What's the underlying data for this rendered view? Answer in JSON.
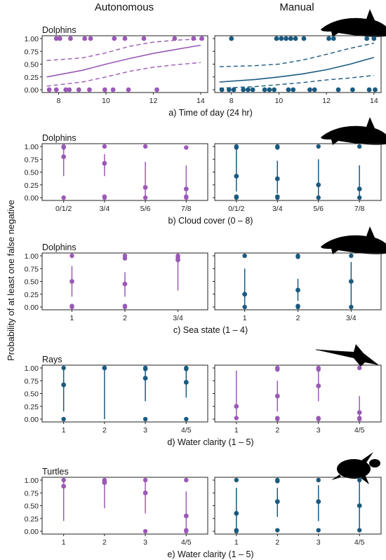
{
  "figure": {
    "col_headers": [
      "Autonomous",
      "Manual"
    ],
    "ylabel": "Probability of at least one false negative",
    "colors": {
      "purple": "#9b59b6",
      "blue": "#1a5a80"
    }
  },
  "chart_data": [
    {
      "id": "a",
      "type": "line",
      "title": "Dolphins",
      "icon": "dolphin-icon",
      "xlabel": "a) Time of day (24 hr)",
      "ylim": [
        0,
        1
      ],
      "yticks": [
        "0.00",
        "0.25",
        "0.50",
        "0.75",
        "1.00"
      ],
      "xlim": [
        7.3,
        14.3
      ],
      "xticks": [
        8,
        10,
        12,
        14
      ],
      "panels": [
        {
          "name": "Autonomous",
          "color": "#9b59b6",
          "fit": {
            "x": [
              7.5,
              9,
              10,
              11,
              12,
              13,
              14
            ],
            "y": [
              0.25,
              0.38,
              0.5,
              0.61,
              0.71,
              0.79,
              0.87
            ]
          },
          "upper": {
            "x": [
              7.5,
              9,
              10,
              11,
              12,
              13,
              14
            ],
            "y": [
              0.57,
              0.62,
              0.72,
              0.85,
              0.93,
              0.97,
              0.99
            ]
          },
          "lower": {
            "x": [
              7.5,
              9,
              10,
              11,
              12,
              13,
              14
            ],
            "y": [
              0.07,
              0.15,
              0.25,
              0.36,
              0.44,
              0.49,
              0.53
            ]
          },
          "points": [
            {
              "x": 7.9,
              "y": 1
            },
            {
              "x": 8.05,
              "y": 1
            },
            {
              "x": 8.5,
              "y": 1
            },
            {
              "x": 9.1,
              "y": 1
            },
            {
              "x": 9.35,
              "y": 1
            },
            {
              "x": 10.35,
              "y": 1
            },
            {
              "x": 10.8,
              "y": 1
            },
            {
              "x": 11.6,
              "y": 1
            },
            {
              "x": 12.9,
              "y": 1
            },
            {
              "x": 13.7,
              "y": 1
            },
            {
              "x": 14.05,
              "y": 1
            },
            {
              "x": 7.6,
              "y": 0
            },
            {
              "x": 7.9,
              "y": 0
            },
            {
              "x": 8.3,
              "y": 0
            },
            {
              "x": 8.45,
              "y": 0
            },
            {
              "x": 8.85,
              "y": 0
            },
            {
              "x": 9.3,
              "y": 0
            },
            {
              "x": 9.95,
              "y": 0
            },
            {
              "x": 10.3,
              "y": 0
            },
            {
              "x": 10.95,
              "y": 0
            },
            {
              "x": 12.15,
              "y": 0
            }
          ]
        },
        {
          "name": "Manual",
          "color": "#1a5a80",
          "fit": {
            "x": [
              7.5,
              9,
              10,
              11,
              12,
              13,
              14
            ],
            "y": [
              0.15,
              0.2,
              0.25,
              0.31,
              0.39,
              0.5,
              0.63
            ]
          },
          "upper": {
            "x": [
              7.5,
              9,
              10,
              11,
              12,
              13,
              14
            ],
            "y": [
              0.45,
              0.47,
              0.5,
              0.58,
              0.69,
              0.81,
              0.91
            ]
          },
          "lower": {
            "x": [
              7.5,
              9,
              10,
              11,
              12,
              13,
              14
            ],
            "y": [
              0.03,
              0.06,
              0.1,
              0.14,
              0.19,
              0.23,
              0.28
            ]
          },
          "points": [
            {
              "x": 8.0,
              "y": 1
            },
            {
              "x": 9.9,
              "y": 1
            },
            {
              "x": 10.1,
              "y": 1
            },
            {
              "x": 10.3,
              "y": 1
            },
            {
              "x": 10.5,
              "y": 1
            },
            {
              "x": 10.7,
              "y": 1
            },
            {
              "x": 11.05,
              "y": 1
            },
            {
              "x": 12.1,
              "y": 1
            },
            {
              "x": 12.3,
              "y": 1
            },
            {
              "x": 13.7,
              "y": 1
            },
            {
              "x": 14.0,
              "y": 1
            },
            {
              "x": 7.6,
              "y": 0
            },
            {
              "x": 7.9,
              "y": 0
            },
            {
              "x": 8.1,
              "y": 0
            },
            {
              "x": 8.5,
              "y": 0
            },
            {
              "x": 8.7,
              "y": 0
            },
            {
              "x": 8.9,
              "y": 0
            },
            {
              "x": 9.4,
              "y": 0
            },
            {
              "x": 9.6,
              "y": 0
            },
            {
              "x": 9.8,
              "y": 0
            },
            {
              "x": 10.4,
              "y": 0
            },
            {
              "x": 10.6,
              "y": 0
            },
            {
              "x": 11.3,
              "y": 0
            },
            {
              "x": 11.5,
              "y": 0
            },
            {
              "x": 12.5,
              "y": 0
            },
            {
              "x": 13.1,
              "y": 0
            },
            {
              "x": 13.8,
              "y": 0
            },
            {
              "x": 14.05,
              "y": 0
            }
          ]
        }
      ]
    },
    {
      "id": "b",
      "type": "scatter",
      "title": "Dolphins",
      "icon": "dolphin-icon",
      "xlabel": "b) Cloud cover (0 – 8)",
      "ylim": [
        0,
        1
      ],
      "yticks": [
        "0.00",
        "0.25",
        "0.50",
        "0.75",
        "1.00"
      ],
      "categories": [
        "0/1/2",
        "3/4",
        "5/6",
        "7/8"
      ],
      "panels": [
        {
          "name": "Autonomous",
          "color": "#9b59b6",
          "groups": [
            {
              "est": 0.8,
              "lo": 0.42,
              "hi": 1.0,
              "raw": [
                0,
                0.98,
                1
              ]
            },
            {
              "est": 0.67,
              "lo": 0.42,
              "hi": 0.85,
              "raw": [
                0,
                0.02,
                1
              ]
            },
            {
              "est": 0.2,
              "lo": 0.02,
              "hi": 0.7,
              "raw": [
                0,
                1
              ]
            },
            {
              "est": 0.17,
              "lo": 0.01,
              "hi": 0.63,
              "raw": [
                0,
                0.02,
                0.98
              ]
            }
          ]
        },
        {
          "name": "Manual",
          "color": "#1a5a80",
          "groups": [
            {
              "est": 0.42,
              "lo": 0.12,
              "hi": 0.98,
              "raw": [
                0,
                0.02,
                0.98,
                1
              ]
            },
            {
              "est": 0.37,
              "lo": 0.08,
              "hi": 0.72,
              "raw": [
                0,
                0.02,
                0.98,
                1
              ]
            },
            {
              "est": 0.25,
              "lo": 0.02,
              "hi": 0.75,
              "raw": [
                0,
                1
              ]
            },
            {
              "est": 0.17,
              "lo": 0.01,
              "hi": 0.63,
              "raw": [
                0,
                1
              ]
            }
          ]
        }
      ]
    },
    {
      "id": "c",
      "type": "scatter",
      "title": "Dolphins",
      "icon": "dolphin-icon",
      "xlabel": "c) Sea state (1 – 4)",
      "ylim": [
        0,
        1
      ],
      "yticks": [
        "0.00",
        "0.25",
        "0.50",
        "0.75",
        "1.00"
      ],
      "categories": [
        "1",
        "2",
        "3/4"
      ],
      "panels": [
        {
          "name": "Autonomous",
          "color": "#9b59b6",
          "groups": [
            {
              "est": 0.5,
              "lo": 0.2,
              "hi": 0.8,
              "raw": [
                0,
                0.02,
                1
              ]
            },
            {
              "est": 0.45,
              "lo": 0.2,
              "hi": 0.68,
              "raw": [
                0,
                0.02,
                0.95,
                1
              ]
            },
            {
              "est": 0.92,
              "lo": 0.32,
              "hi": 0.99,
              "raw": [
                0.97,
                1
              ]
            }
          ]
        },
        {
          "name": "Manual",
          "color": "#1a5a80",
          "groups": [
            {
              "est": 0.25,
              "lo": 0.02,
              "hi": 0.75,
              "raw": [
                0,
                1
              ]
            },
            {
              "est": 0.33,
              "lo": 0.12,
              "hi": 0.55,
              "raw": [
                0,
                0.02,
                0.98,
                1
              ]
            },
            {
              "est": 0.5,
              "lo": 0.03,
              "hi": 0.88,
              "raw": [
                0,
                1
              ]
            }
          ]
        }
      ]
    },
    {
      "id": "d",
      "type": "scatter",
      "title": "Rays",
      "icon": "ray-icon",
      "xlabel": "d) Water clarity (1 – 5)",
      "ylim": [
        0,
        1
      ],
      "yticks": [
        "0.00",
        "0.25",
        "0.50",
        "0.75",
        "1.00"
      ],
      "categories": [
        "1",
        "2",
        "3",
        "4/5"
      ],
      "panels": [
        {
          "name": "Autonomous",
          "color": "#1a5a80",
          "groups": [
            {
              "est": 0.67,
              "lo": 0.15,
              "hi": 0.97,
              "raw": [
                0,
                1
              ]
            },
            {
              "est": 1.0,
              "lo": 0.0,
              "hi": 1.0,
              "raw": [
                1
              ]
            },
            {
              "est": 0.8,
              "lo": 0.35,
              "hi": 0.98,
              "raw": [
                0,
                0.98,
                1
              ]
            },
            {
              "est": 0.72,
              "lo": 0.42,
              "hi": 0.95,
              "raw": [
                0,
                0.98,
                1
              ]
            }
          ]
        },
        {
          "name": "Manual",
          "color": "#9b59b6",
          "groups": [
            {
              "est": 0.25,
              "lo": 0.01,
              "hi": 0.95,
              "raw": [
                0.02
              ]
            },
            {
              "est": 0.45,
              "lo": 0.15,
              "hi": 0.75,
              "raw": [
                0,
                0.02,
                0.97,
                1
              ]
            },
            {
              "est": 0.65,
              "lo": 0.35,
              "hi": 0.95,
              "raw": [
                0,
                0.02,
                0.97,
                1
              ]
            },
            {
              "est": 0.13,
              "lo": 0.01,
              "hi": 0.45,
              "raw": [
                0,
                0.02,
                1
              ]
            }
          ]
        }
      ]
    },
    {
      "id": "e",
      "type": "scatter",
      "title": "Turtles",
      "icon": "turtle-icon",
      "xlabel": "e) Water clarity (1 – 5)",
      "ylim": [
        0,
        1
      ],
      "yticks": [
        "0.00",
        "0.25",
        "0.50",
        "0.75",
        "1.00"
      ],
      "categories": [
        "1",
        "2",
        "3",
        "4/5"
      ],
      "panels": [
        {
          "name": "Autonomous",
          "color": "#9b59b6",
          "groups": [
            {
              "est": 0.88,
              "lo": 0.2,
              "hi": 0.99,
              "raw": [
                1
              ]
            },
            {
              "est": 0.95,
              "lo": 0.45,
              "hi": 1.0,
              "raw": [
                0.97,
                1
              ]
            },
            {
              "est": 0.75,
              "lo": 0.35,
              "hi": 0.97,
              "raw": [
                0,
                1
              ]
            },
            {
              "est": 0.3,
              "lo": 0.02,
              "hi": 0.78,
              "raw": [
                0,
                0.02,
                1
              ]
            }
          ]
        },
        {
          "name": "Manual",
          "color": "#1a5a80",
          "groups": [
            {
              "est": 0.35,
              "lo": 0.02,
              "hi": 0.85,
              "raw": [
                0,
                0.02,
                1
              ]
            },
            {
              "est": 0.58,
              "lo": 0.28,
              "hi": 0.85,
              "raw": [
                0.02,
                0.98,
                1
              ]
            },
            {
              "est": 0.58,
              "lo": 0.2,
              "hi": 0.9,
              "raw": [
                0.02,
                1
              ]
            },
            {
              "est": 0.5,
              "lo": 0.03,
              "hi": 0.97,
              "raw": [
                0.02,
                1
              ]
            }
          ]
        }
      ]
    }
  ]
}
